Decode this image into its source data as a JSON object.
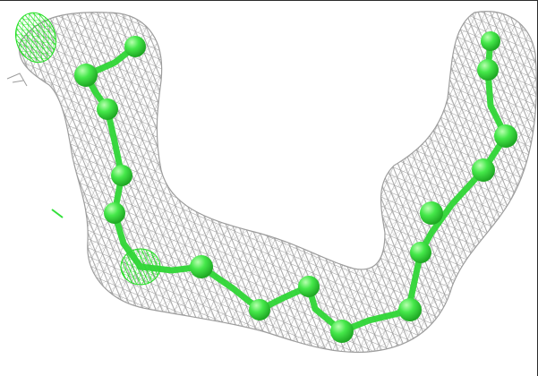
{
  "scene": {
    "subject": "electron-density-mesh-with-ligand-chain",
    "colors": {
      "background": "#ffffff",
      "mesh": "#8e8e8e",
      "atom": "#33e03a",
      "atom_highlight": "#b8ffb0",
      "bond": "#2fd636",
      "diff_density": "#1fe01f",
      "frame": "#2b2b2b"
    }
  }
}
